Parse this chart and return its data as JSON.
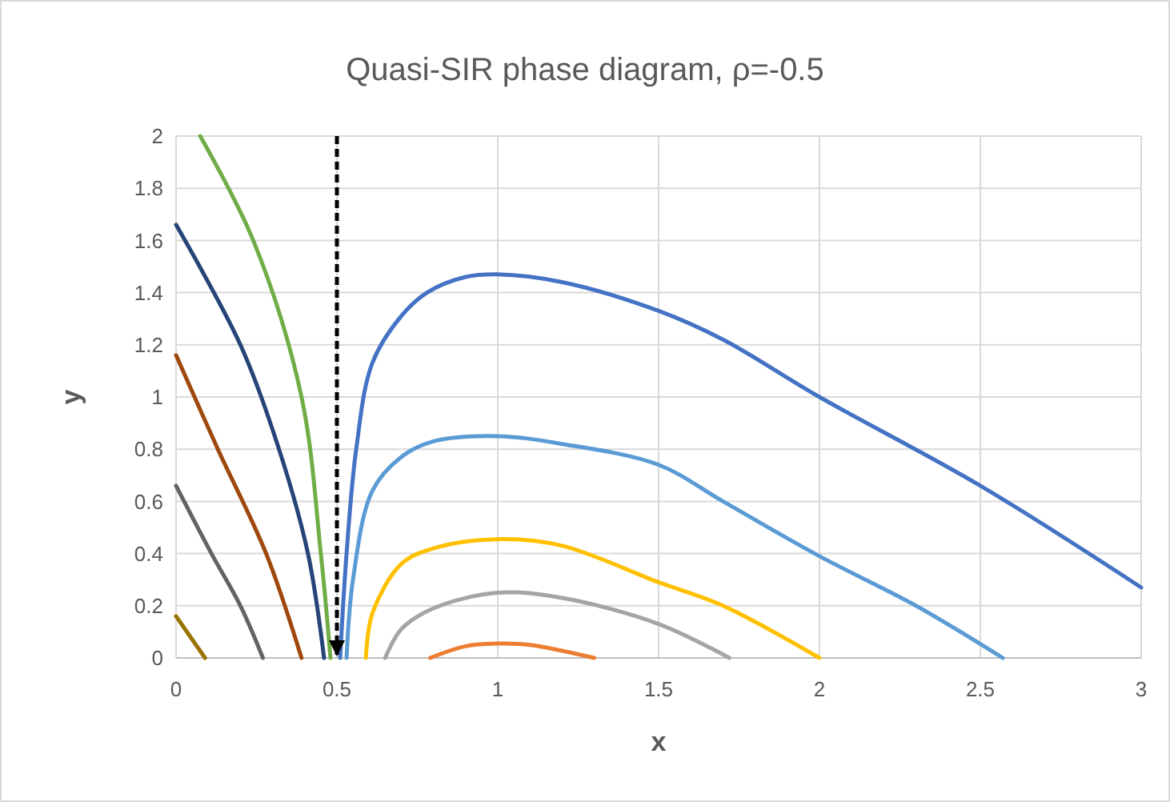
{
  "chart_data": {
    "type": "line",
    "title": "Quasi-SIR phase diagram, ρ=-0.5",
    "xlabel": "x",
    "ylabel": "y",
    "xlim": [
      0,
      3
    ],
    "xticks": [
      0,
      0.5,
      1,
      1.5,
      2,
      2.5,
      3
    ],
    "ylim": [
      0,
      2
    ],
    "yticks": [
      0,
      0.2,
      0.4,
      0.6,
      0.8,
      1,
      1.2,
      1.4,
      1.6,
      1.8,
      2
    ],
    "grid": true,
    "marker": "none",
    "line_style": "solid",
    "series": [
      {
        "color": "#4472c4",
        "x": [
          0.51,
          0.53,
          0.56,
          0.61,
          0.7,
          0.78,
          0.9,
          1,
          1.2,
          1.5,
          1.7,
          2,
          2.5,
          3
        ],
        "values": [
          0,
          0.4,
          0.8,
          1.13,
          1.31,
          1.4,
          1.46,
          1.47,
          1.44,
          1.33,
          1.22,
          1.0,
          0.66,
          0.27
        ]
      },
      {
        "color": "#5b9bd5",
        "x": [
          0.53,
          0.55,
          0.61,
          0.7,
          0.8,
          1,
          1.2,
          1.5,
          1.7,
          2,
          2.3,
          2.57
        ],
        "values": [
          0,
          0.3,
          0.64,
          0.77,
          0.83,
          0.85,
          0.82,
          0.74,
          0.6,
          0.39,
          0.2,
          0
        ]
      },
      {
        "color": "#ffc000",
        "x": [
          0.59,
          0.61,
          0.7,
          0.8,
          1,
          1.2,
          1.5,
          1.7,
          2
        ],
        "values": [
          0,
          0.17,
          0.36,
          0.42,
          0.455,
          0.43,
          0.29,
          0.2,
          0
        ]
      },
      {
        "color": "#a5a5a5",
        "x": [
          0.65,
          0.7,
          0.8,
          1,
          1.2,
          1.5,
          1.72
        ],
        "values": [
          0,
          0.11,
          0.19,
          0.25,
          0.23,
          0.13,
          0
        ]
      },
      {
        "color": "#ed7d31",
        "x": [
          0.79,
          0.9,
          1,
          1.1,
          1.3
        ],
        "values": [
          0,
          0.045,
          0.055,
          0.05,
          0
        ]
      },
      {
        "color": "#997300",
        "x": [
          0,
          0.09
        ],
        "values": [
          0.16,
          0
        ]
      },
      {
        "color": "#636363",
        "x": [
          0,
          0.11,
          0.2,
          0.27
        ],
        "values": [
          0.66,
          0.4,
          0.2,
          0
        ]
      },
      {
        "color": "#9e480e",
        "x": [
          0,
          0.13,
          0.28,
          0.39
        ],
        "values": [
          1.16,
          0.8,
          0.4,
          0
        ]
      },
      {
        "color": "#264478",
        "x": [
          0,
          0.2,
          0.32,
          0.41,
          0.46
        ],
        "values": [
          1.66,
          1.2,
          0.8,
          0.4,
          0
        ]
      },
      {
        "color": "#70ad47",
        "x": [
          0.075,
          0.24,
          0.39,
          0.45,
          0.48
        ],
        "values": [
          2,
          1.6,
          1.0,
          0.4,
          0
        ]
      }
    ],
    "ref_lines": [
      {
        "axis": "x",
        "value": 0.5,
        "color": "#000000",
        "line_style": "dashed"
      }
    ]
  }
}
